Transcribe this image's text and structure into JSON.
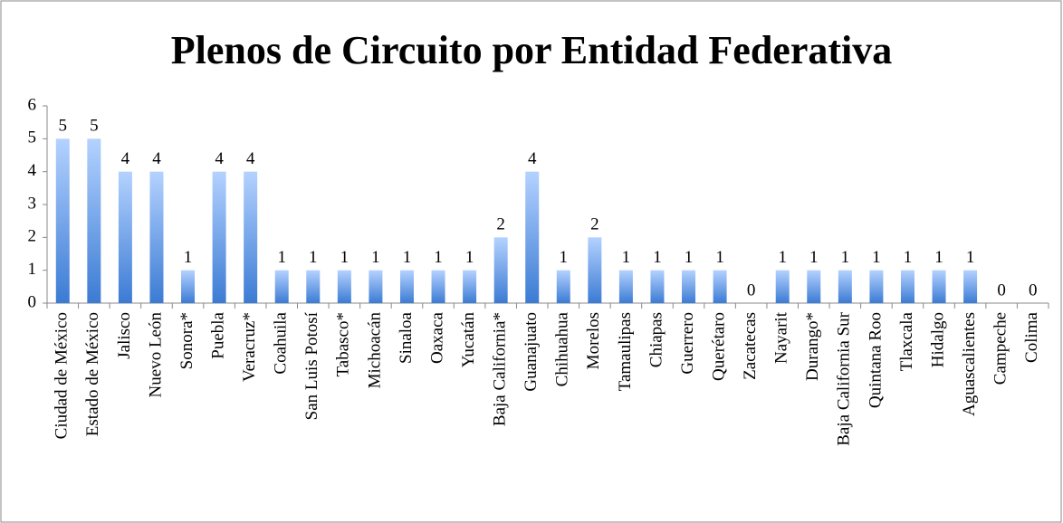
{
  "chart_data": {
    "type": "bar",
    "title": "Plenos de Circuito por Entidad Federativa",
    "categories": [
      "Ciudad de México",
      "Estado de México",
      "Jalisco",
      "Nuevo León",
      "Sonora*",
      "Puebla",
      "Veracruz*",
      "Coahuila",
      "San Luis Potosí",
      "Tabasco*",
      "Michoacán",
      "Sinaloa",
      "Oaxaca",
      "Yucatán",
      "Baja California*",
      "Guanajuato",
      "Chihuahua",
      "Morelos",
      "Tamaulipas",
      "Chiapas",
      "Guerrero",
      "Querétaro",
      "Zacatecas",
      "Nayarit",
      "Durango*",
      "Baja California Sur",
      "Quintana Roo",
      "Tlaxcala",
      "Hidalgo",
      "Aguascalientes",
      "Campeche",
      "Colima"
    ],
    "values": [
      5,
      5,
      4,
      4,
      1,
      4,
      4,
      1,
      1,
      1,
      1,
      1,
      1,
      1,
      2,
      4,
      1,
      2,
      1,
      1,
      1,
      1,
      0,
      1,
      1,
      1,
      1,
      1,
      1,
      1,
      0,
      0
    ],
    "color": "#3b7bd4",
    "ylim": [
      0,
      6
    ],
    "yticks": [
      0,
      1,
      2,
      3,
      4,
      5,
      6
    ],
    "grid": false
  }
}
